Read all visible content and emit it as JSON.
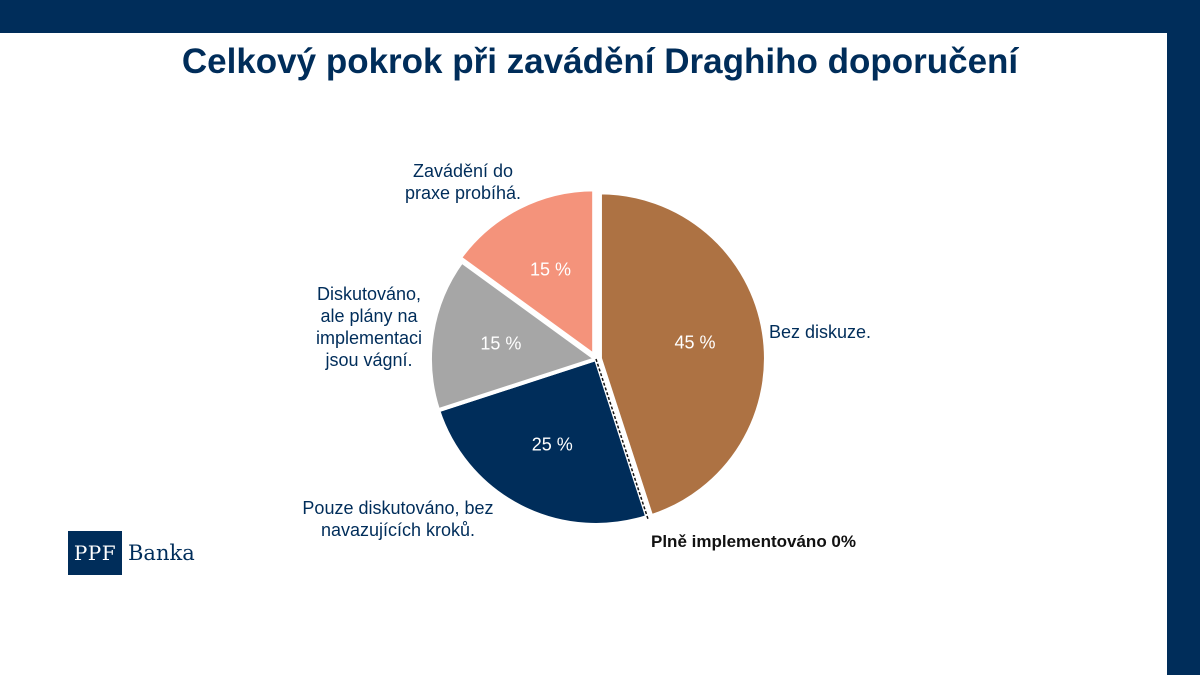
{
  "title": "Celkový pokrok při zavádění Draghiho doporučení",
  "colors": {
    "frame": "#002d5a",
    "bez_diskuze": "#ad7243",
    "pouze_diskutovano": "#002d5a",
    "diskutovano_vague": "#a6a6a6",
    "probiha": "#f4937b",
    "implementovano": "#ffffff"
  },
  "chart_data": {
    "type": "pie",
    "title": "Celkový pokrok při zavádění Draghiho doporučení",
    "slices": [
      {
        "label": "Bez diskuze.",
        "value": 45,
        "value_label": "45 %"
      },
      {
        "label": "Plně implementováno 0%",
        "value": 0,
        "value_label": ""
      },
      {
        "label": "Pouze diskutováno, bez navazujících kroků.",
        "value": 25,
        "value_label": "25 %"
      },
      {
        "label": "Diskutováno, ale plány na implementaci jsou vágní.",
        "value": 15,
        "value_label": "15 %"
      },
      {
        "label": "Zavádění do praxe probíhá.",
        "value": 15,
        "value_label": "15 %"
      }
    ]
  },
  "labels": {
    "bez_diskuze": [
      "Bez diskuze."
    ],
    "implementovano": "Plně implementováno 0%",
    "pouze": [
      "Pouze diskutováno, bez",
      "navazujících kroků."
    ],
    "diskutovano": [
      "Diskutováno,",
      "ale plány na",
      "implementaci",
      "jsou vágní."
    ],
    "probiha": [
      "Zavádění do",
      "praxe probíhá."
    ]
  },
  "logo": {
    "box_text": "PPF",
    "text": "Banka"
  }
}
